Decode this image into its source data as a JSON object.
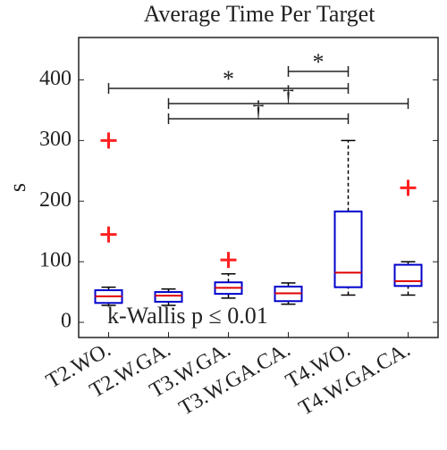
{
  "chart_data": {
    "type": "box",
    "title": "Average Time Per Target",
    "ylabel": "s",
    "categories": [
      "T2.WO.",
      "T2.W.GA.",
      "T3.W.GA.",
      "T3.W.GA.CA.",
      "T4.WO.",
      "T4.W.GA.CA."
    ],
    "boxes": [
      {
        "whislo": 28,
        "q1": 32,
        "med": 43,
        "q3": 53,
        "whishi": 58,
        "fliers": [
          300,
          145
        ]
      },
      {
        "whislo": 28,
        "q1": 34,
        "med": 44,
        "q3": 50,
        "whishi": 55,
        "fliers": []
      },
      {
        "whislo": 40,
        "q1": 47,
        "med": 57,
        "q3": 66,
        "whishi": 80,
        "fliers": [
          103
        ]
      },
      {
        "whislo": 30,
        "q1": 35,
        "med": 48,
        "q3": 59,
        "whishi": 65,
        "fliers": []
      },
      {
        "whislo": 45,
        "q1": 58,
        "med": 82,
        "q3": 183,
        "whishi": 300,
        "fliers": []
      },
      {
        "whislo": 45,
        "q1": 60,
        "med": 68,
        "q3": 95,
        "whishi": 100,
        "fliers": [
          222
        ]
      }
    ],
    "box_color": "#0000cc",
    "median_color": "#e00000",
    "flier_color": "#ff2020",
    "ylim": [
      -25,
      470
    ],
    "yticks": [
      0,
      100,
      200,
      300,
      400
    ],
    "annotation": "k-Wallis p ≤ 0.01",
    "significance": [
      {
        "label": "*",
        "from": 3,
        "to": 4
      },
      {
        "label": "*",
        "from": 0,
        "to": 4
      },
      {
        "label": "†",
        "from": 1,
        "to": 5
      },
      {
        "label": "†",
        "from": 1,
        "to": 4
      }
    ]
  }
}
